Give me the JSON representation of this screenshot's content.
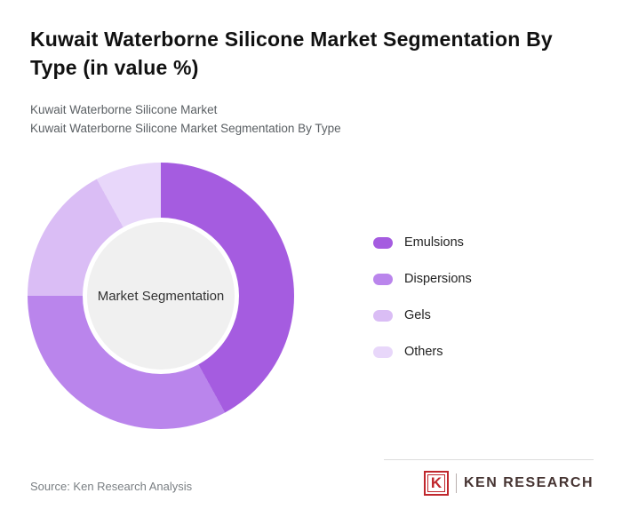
{
  "header": {
    "title": "Kuwait Waterborne Silicone Market Segmentation By Type (in value %)",
    "subtitle_line1": "Kuwait Waterborne Silicone Market",
    "subtitle_line2": "Kuwait Waterborne Silicone Market Segmentation By Type"
  },
  "chart_data": {
    "type": "pie",
    "subtype": "donut",
    "title": "Kuwait Waterborne Silicone Market Segmentation By Type (in value %)",
    "center_label": "Market Segmentation",
    "labels": [
      "Emulsions",
      "Dispersions",
      "Gels",
      "Others"
    ],
    "values": [
      42,
      33,
      17,
      8
    ],
    "values_note": "estimated from arc angles; no numeric labels shown in image",
    "colors": [
      "#a55ce0",
      "#ba85ec",
      "#dabdf5",
      "#e8d7fa"
    ],
    "start_angle_deg": 0,
    "direction": "clockwise",
    "legend_position": "right",
    "hole_color": "#f0f0f0"
  },
  "footer": {
    "source": "Source: Ken Research Analysis",
    "logo_k": "K",
    "logo_text": "KEN RESEARCH",
    "brand_color": "#c0272d"
  }
}
